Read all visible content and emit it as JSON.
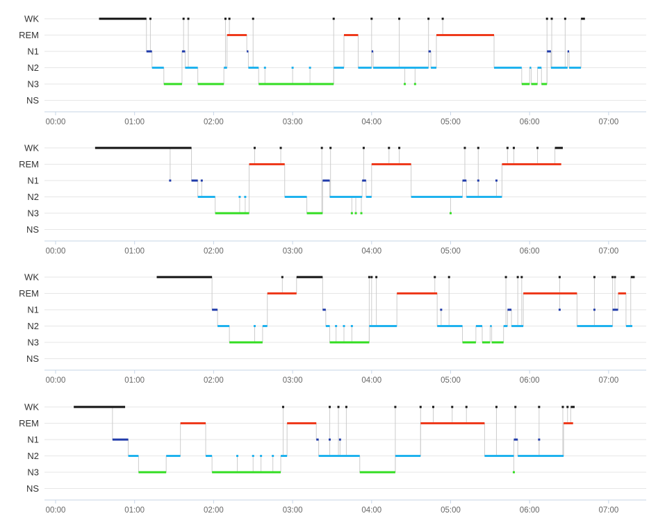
{
  "colors": {
    "WK": "#111111",
    "REM": "#ee3a1c",
    "N1": "#1f3aaa",
    "N2": "#1fb2ee",
    "N3": "#33dd22",
    "transition": "#cccccc",
    "grid": "#e6e6e6",
    "axis": "#c6d4e6"
  },
  "chart_data": [
    {
      "type": "hypnogram",
      "stages": [
        "WK",
        "REM",
        "N1",
        "N2",
        "N3",
        "NS"
      ],
      "x_ticks": [
        "00:00",
        "01:00",
        "02:00",
        "03:00",
        "04:00",
        "05:00",
        "06:00",
        "07:00"
      ],
      "x_range_hours": [
        0,
        7.5
      ],
      "segments": [
        [
          "WK",
          0.55,
          1.15
        ],
        [
          "N1",
          1.15,
          1.22
        ],
        [
          "N2",
          1.22,
          1.37
        ],
        [
          "N3",
          1.37,
          1.6
        ],
        [
          "N1",
          1.6,
          1.64
        ],
        [
          "N2",
          1.64,
          1.8
        ],
        [
          "N3",
          1.8,
          2.13
        ],
        [
          "N2",
          2.13,
          2.17
        ],
        [
          "REM",
          2.17,
          2.42
        ],
        [
          "N1",
          2.42,
          2.44
        ],
        [
          "N2",
          2.44,
          2.57
        ],
        [
          "N3",
          2.57,
          3.52
        ],
        [
          "N2",
          3.52,
          3.65
        ],
        [
          "REM",
          3.65,
          3.83
        ],
        [
          "N2",
          3.83,
          4.0
        ],
        [
          "N1",
          4.0,
          4.02
        ],
        [
          "N2",
          4.02,
          4.72
        ],
        [
          "N1",
          4.72,
          4.75
        ],
        [
          "N2",
          4.75,
          4.82
        ],
        [
          "REM",
          4.82,
          5.55
        ],
        [
          "N2",
          5.55,
          5.9
        ],
        [
          "N3",
          5.9,
          6.0
        ],
        [
          "N2",
          6.0,
          6.02
        ],
        [
          "N3",
          6.02,
          6.1
        ],
        [
          "N2",
          6.1,
          6.15
        ],
        [
          "N3",
          6.15,
          6.22
        ],
        [
          "N1",
          6.22,
          6.27
        ],
        [
          "N2",
          6.27,
          6.48
        ],
        [
          "N1",
          6.48,
          6.5
        ],
        [
          "N2",
          6.5,
          6.65
        ],
        [
          "WK",
          6.65,
          6.7
        ]
      ],
      "spikes": [
        [
          "WK",
          1.2
        ],
        [
          "WK",
          1.62
        ],
        [
          "WK",
          1.68
        ],
        [
          "WK",
          2.15
        ],
        [
          "WK",
          2.2
        ],
        [
          "WK",
          2.5
        ],
        [
          "WK",
          3.52
        ],
        [
          "WK",
          4.0
        ],
        [
          "WK",
          4.35
        ],
        [
          "WK",
          4.72
        ],
        [
          "WK",
          4.9
        ],
        [
          "WK",
          6.22
        ],
        [
          "WK",
          6.28
        ],
        [
          "WK",
          6.45
        ],
        [
          "N2",
          2.65
        ],
        [
          "N2",
          3.0
        ],
        [
          "N2",
          3.22
        ],
        [
          "N3",
          4.42
        ],
        [
          "N3",
          4.55
        ],
        [
          "N2",
          6.3
        ],
        [
          "N2",
          6.35
        ]
      ]
    },
    {
      "type": "hypnogram",
      "stages": [
        "WK",
        "REM",
        "N1",
        "N2",
        "N3",
        "NS"
      ],
      "x_ticks": [
        "00:00",
        "01:00",
        "02:00",
        "03:00",
        "04:00",
        "05:00",
        "06:00",
        "07:00"
      ],
      "x_range_hours": [
        0,
        7.5
      ],
      "segments": [
        [
          "WK",
          0.5,
          1.72
        ],
        [
          "N1",
          1.72,
          1.8
        ],
        [
          "N2",
          1.8,
          2.02
        ],
        [
          "N3",
          2.02,
          2.45
        ],
        [
          "REM",
          2.45,
          2.9
        ],
        [
          "N2",
          2.9,
          3.18
        ],
        [
          "N3",
          3.18,
          3.38
        ],
        [
          "N1",
          3.38,
          3.47
        ],
        [
          "N2",
          3.47,
          3.88
        ],
        [
          "N1",
          3.88,
          3.93
        ],
        [
          "N2",
          3.93,
          4.0
        ],
        [
          "REM",
          4.0,
          4.5
        ],
        [
          "N2",
          4.5,
          5.15
        ],
        [
          "N1",
          5.15,
          5.2
        ],
        [
          "N2",
          5.2,
          5.65
        ],
        [
          "REM",
          5.65,
          6.4
        ],
        [
          "WK",
          6.32,
          6.42
        ]
      ],
      "spikes": [
        [
          "N1",
          1.45
        ],
        [
          "WK",
          1.7
        ],
        [
          "N1",
          1.85
        ],
        [
          "N2",
          2.33
        ],
        [
          "N2",
          2.4
        ],
        [
          "WK",
          2.52
        ],
        [
          "WK",
          2.85
        ],
        [
          "WK",
          3.37
        ],
        [
          "WK",
          3.48
        ],
        [
          "N3",
          3.75
        ],
        [
          "N3",
          3.8
        ],
        [
          "N3",
          3.87
        ],
        [
          "WK",
          3.9
        ],
        [
          "WK",
          4.22
        ],
        [
          "WK",
          4.35
        ],
        [
          "WK",
          5.18
        ],
        [
          "WK",
          5.35
        ],
        [
          "N1",
          5.35
        ],
        [
          "N3",
          5.0
        ],
        [
          "N1",
          5.58
        ],
        [
          "WK",
          5.72
        ],
        [
          "WK",
          5.8
        ],
        [
          "WK",
          6.1
        ]
      ]
    },
    {
      "type": "hypnogram",
      "stages": [
        "WK",
        "REM",
        "N1",
        "N2",
        "N3",
        "NS"
      ],
      "x_ticks": [
        "00:00",
        "01:00",
        "02:00",
        "03:00",
        "04:00",
        "05:00",
        "06:00",
        "07:00"
      ],
      "x_range_hours": [
        0,
        7.5
      ],
      "segments": [
        [
          "WK",
          1.28,
          1.98
        ],
        [
          "N1",
          1.98,
          2.05
        ],
        [
          "N2",
          2.05,
          2.2
        ],
        [
          "N3",
          2.2,
          2.62
        ],
        [
          "N2",
          2.62,
          2.68
        ],
        [
          "REM",
          2.68,
          3.05
        ],
        [
          "WK",
          3.05,
          3.38
        ],
        [
          "N1",
          3.38,
          3.42
        ],
        [
          "N2",
          3.42,
          3.47
        ],
        [
          "N3",
          3.47,
          3.97
        ],
        [
          "N2",
          3.97,
          4.32
        ],
        [
          "REM",
          4.32,
          4.83
        ],
        [
          "N2",
          4.83,
          5.15
        ],
        [
          "N3",
          5.15,
          5.32
        ],
        [
          "N2",
          5.32,
          5.4
        ],
        [
          "N3",
          5.4,
          5.5
        ],
        [
          "N2",
          5.5,
          5.52
        ],
        [
          "N3",
          5.52,
          5.67
        ],
        [
          "N2",
          5.67,
          5.72
        ],
        [
          "N1",
          5.72,
          5.77
        ],
        [
          "N2",
          5.77,
          5.92
        ],
        [
          "REM",
          5.92,
          6.6
        ],
        [
          "N2",
          6.6,
          7.05
        ],
        [
          "N1",
          7.05,
          7.12
        ],
        [
          "REM",
          7.12,
          7.22
        ],
        [
          "N2",
          7.22,
          7.3
        ],
        [
          "WK",
          7.28,
          7.33
        ]
      ],
      "spikes": [
        [
          "N2",
          2.52
        ],
        [
          "WK",
          2.87
        ],
        [
          "N2",
          3.55
        ],
        [
          "N2",
          3.65
        ],
        [
          "N2",
          3.75
        ],
        [
          "WK",
          3.97
        ],
        [
          "WK",
          4.0
        ],
        [
          "WK",
          4.06
        ],
        [
          "WK",
          4.8
        ],
        [
          "WK",
          4.98
        ],
        [
          "N1",
          4.88
        ],
        [
          "WK",
          5.7
        ],
        [
          "WK",
          5.85
        ],
        [
          "WK",
          5.9
        ],
        [
          "WK",
          6.38
        ],
        [
          "N1",
          6.38
        ],
        [
          "WK",
          6.82
        ],
        [
          "N1",
          6.82
        ],
        [
          "WK",
          7.05
        ],
        [
          "WK",
          7.08
        ]
      ]
    },
    {
      "type": "hypnogram",
      "stages": [
        "WK",
        "REM",
        "N1",
        "N2",
        "N3",
        "NS"
      ],
      "x_ticks": [
        "00:00",
        "01:00",
        "02:00",
        "03:00",
        "04:00",
        "05:00",
        "06:00",
        "07:00"
      ],
      "x_range_hours": [
        0,
        7.5
      ],
      "segments": [
        [
          "WK",
          0.23,
          0.88
        ],
        [
          "N1",
          0.72,
          0.92
        ],
        [
          "N2",
          0.92,
          1.05
        ],
        [
          "N3",
          1.05,
          1.4
        ],
        [
          "N2",
          1.4,
          1.58
        ],
        [
          "REM",
          1.58,
          1.9
        ],
        [
          "N2",
          1.9,
          1.98
        ],
        [
          "N3",
          1.98,
          2.85
        ],
        [
          "N2",
          2.85,
          2.93
        ],
        [
          "REM",
          2.93,
          3.3
        ],
        [
          "N1",
          3.3,
          3.33
        ],
        [
          "N2",
          3.33,
          3.85
        ],
        [
          "N3",
          3.85,
          4.3
        ],
        [
          "N2",
          4.3,
          4.62
        ],
        [
          "REM",
          4.62,
          5.43
        ],
        [
          "N2",
          5.43,
          5.8
        ],
        [
          "N1",
          5.8,
          5.85
        ],
        [
          "N2",
          5.85,
          6.43
        ],
        [
          "REM",
          6.43,
          6.55
        ],
        [
          "WK",
          6.52,
          6.57
        ]
      ],
      "spikes": [
        [
          "N2",
          2.3
        ],
        [
          "N2",
          2.5
        ],
        [
          "N2",
          2.6
        ],
        [
          "N2",
          2.75
        ],
        [
          "WK",
          2.88
        ],
        [
          "WK",
          3.47
        ],
        [
          "WK",
          3.58
        ],
        [
          "WK",
          3.68
        ],
        [
          "N1",
          3.47
        ],
        [
          "N1",
          3.6
        ],
        [
          "WK",
          4.3
        ],
        [
          "WK",
          4.62
        ],
        [
          "WK",
          4.78
        ],
        [
          "WK",
          5.02
        ],
        [
          "WK",
          5.2
        ],
        [
          "WK",
          5.58
        ],
        [
          "WK",
          5.82
        ],
        [
          "N3",
          5.8
        ],
        [
          "WK",
          6.12
        ],
        [
          "N1",
          6.12
        ],
        [
          "WK",
          6.42
        ],
        [
          "WK",
          6.48
        ]
      ]
    }
  ]
}
